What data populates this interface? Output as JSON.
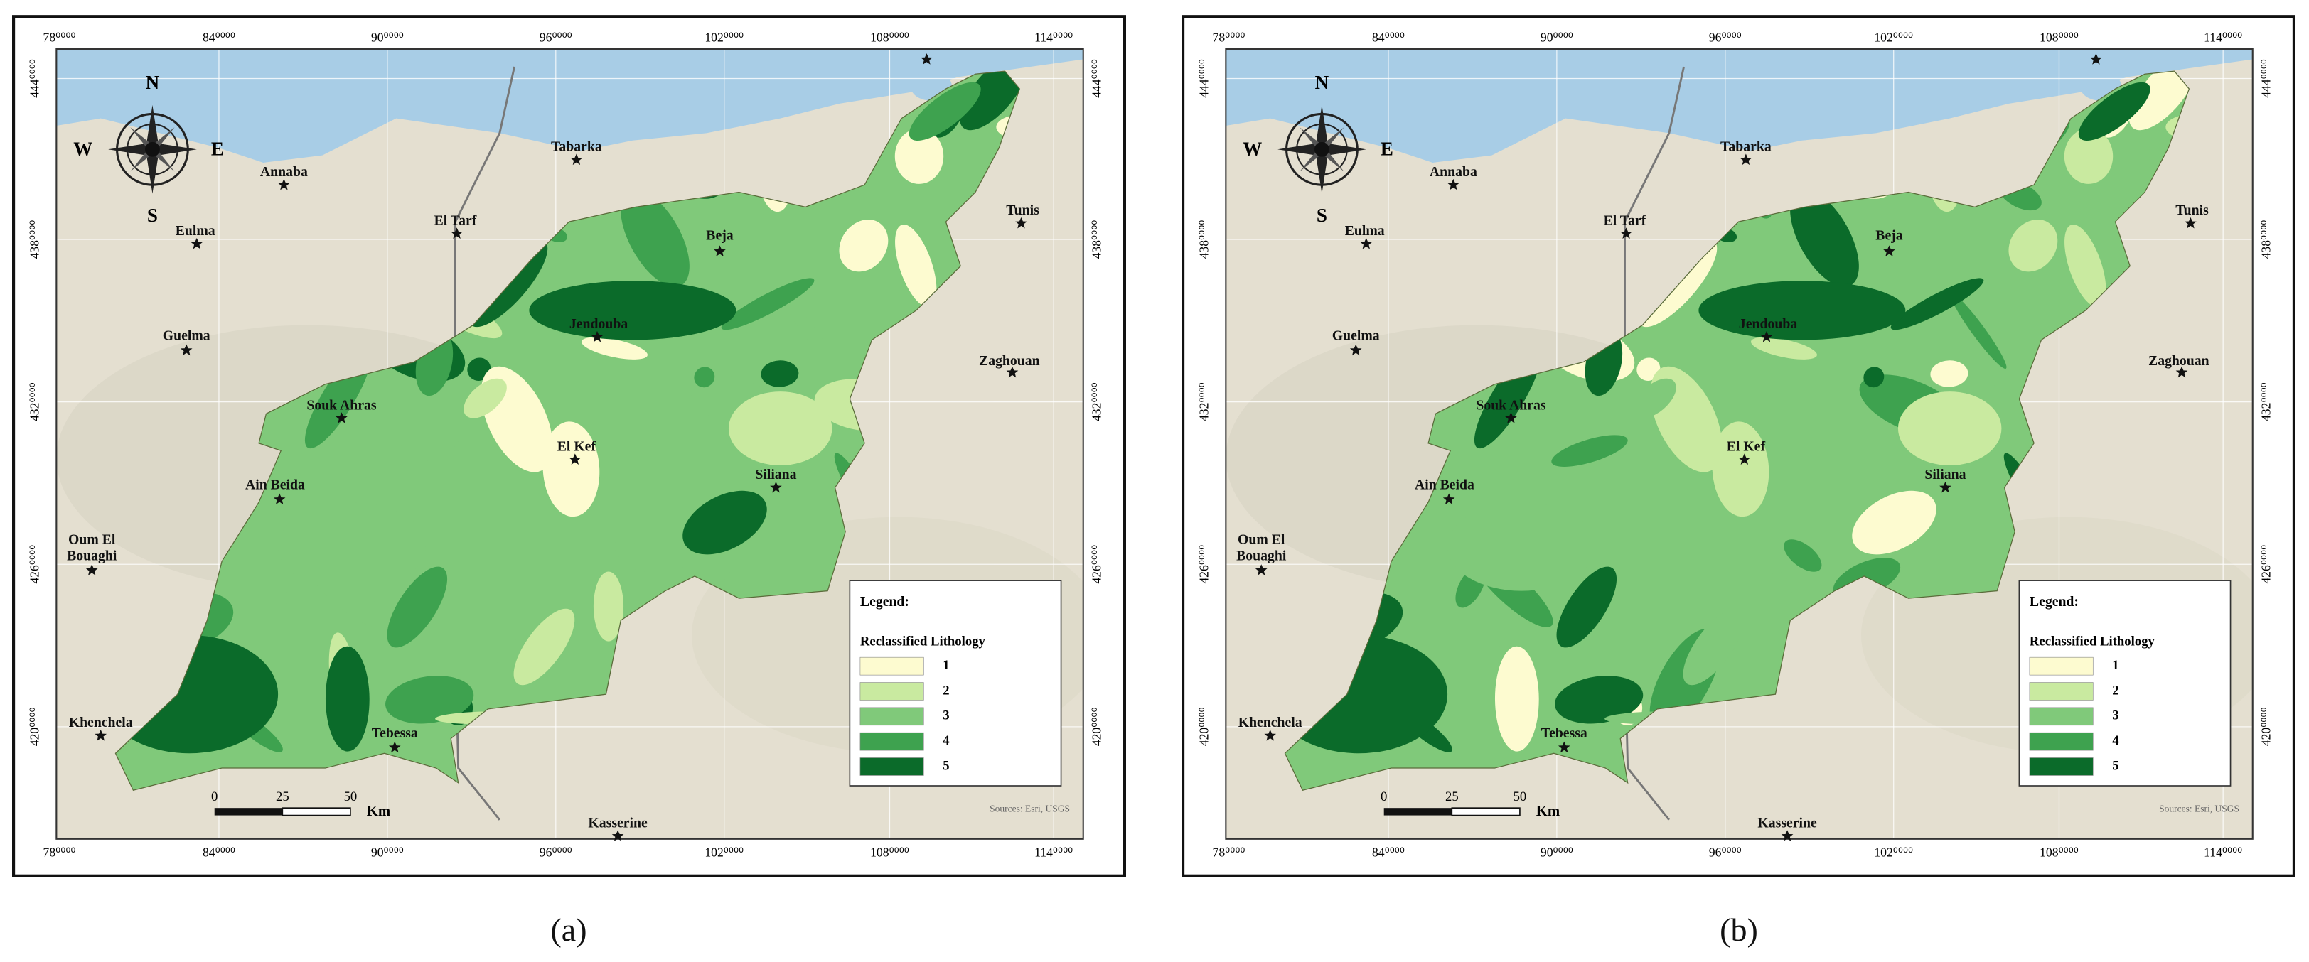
{
  "panels": [
    {
      "caption": "(a)",
      "x_ticks": [
        "78⁰⁰⁰⁰",
        "84⁰⁰⁰⁰",
        "90⁰⁰⁰⁰",
        "96⁰⁰⁰⁰",
        "102⁰⁰⁰⁰",
        "108⁰⁰⁰⁰",
        "114⁰⁰⁰⁰"
      ],
      "y_ticks": [
        "444⁰⁰⁰⁰",
        "438⁰⁰⁰⁰",
        "432⁰⁰⁰⁰",
        "426⁰⁰⁰⁰",
        "420⁰⁰⁰⁰"
      ],
      "cities": [
        [
          "Tabarka"
        ],
        [
          "Annaba"
        ],
        [
          "Eulma"
        ],
        [
          "El Tarf"
        ],
        [
          "Beja"
        ],
        [
          "Tunis"
        ],
        [
          "Guelma"
        ],
        [
          "Jendouba"
        ],
        [
          "Zaghouan"
        ],
        [
          "Souk Ahras"
        ],
        [
          "El Kef"
        ],
        [
          "Siliana"
        ],
        [
          "Ain Beida"
        ],
        [
          "Oum El",
          "Bouaghi"
        ],
        [
          "Khenchela"
        ],
        [
          "Tebessa"
        ],
        [
          "Kasserine"
        ]
      ],
      "compass": {
        "n": "N",
        "s": "S",
        "w": "W",
        "e": "E"
      },
      "legend": {
        "title": "Legend:",
        "subtitle": "Reclassified Lithology",
        "classes": [
          {
            "label": "1",
            "color": "#fdfbd0"
          },
          {
            "label": "2",
            "color": "#c9eaa0"
          },
          {
            "label": "3",
            "color": "#80c97a"
          },
          {
            "label": "4",
            "color": "#3ea24f"
          },
          {
            "label": "5",
            "color": "#0b6b2a"
          }
        ]
      },
      "scale": {
        "labels": [
          "0",
          "25",
          "50"
        ],
        "unit": "Km"
      },
      "source": "Sources: Esri, USGS"
    },
    {
      "caption": "(b)",
      "x_ticks": [
        "78⁰⁰⁰⁰",
        "84⁰⁰⁰⁰",
        "90⁰⁰⁰⁰",
        "96⁰⁰⁰⁰",
        "102⁰⁰⁰⁰",
        "108⁰⁰⁰⁰",
        "114⁰⁰⁰⁰"
      ],
      "y_ticks": [
        "444⁰⁰⁰⁰",
        "438⁰⁰⁰⁰",
        "432⁰⁰⁰⁰",
        "426⁰⁰⁰⁰",
        "420⁰⁰⁰⁰"
      ],
      "cities": [
        [
          "Tabarka"
        ],
        [
          "Annaba"
        ],
        [
          "Eulma"
        ],
        [
          "El Tarf"
        ],
        [
          "Beja"
        ],
        [
          "Tunis"
        ],
        [
          "Guelma"
        ],
        [
          "Jendouba"
        ],
        [
          "Zaghouan"
        ],
        [
          "Souk Ahras"
        ],
        [
          "El Kef"
        ],
        [
          "Siliana"
        ],
        [
          "Ain Beida"
        ],
        [
          "Oum El",
          "Bouaghi"
        ],
        [
          "Khenchela"
        ],
        [
          "Tebessa"
        ],
        [
          "Kasserine"
        ]
      ],
      "compass": {
        "n": "N",
        "s": "S",
        "w": "W",
        "e": "E"
      },
      "legend": {
        "title": "Legend:",
        "subtitle": "Reclassified Lithology",
        "classes": [
          {
            "label": "1",
            "color": "#fdfbd0"
          },
          {
            "label": "2",
            "color": "#c9eaa0"
          },
          {
            "label": "3",
            "color": "#80c97a"
          },
          {
            "label": "4",
            "color": "#3ea24f"
          },
          {
            "label": "5",
            "color": "#0b6b2a"
          }
        ]
      },
      "scale": {
        "labels": [
          "0",
          "25",
          "50"
        ],
        "unit": "Km"
      },
      "source": "Sources: Esri, USGS"
    }
  ]
}
